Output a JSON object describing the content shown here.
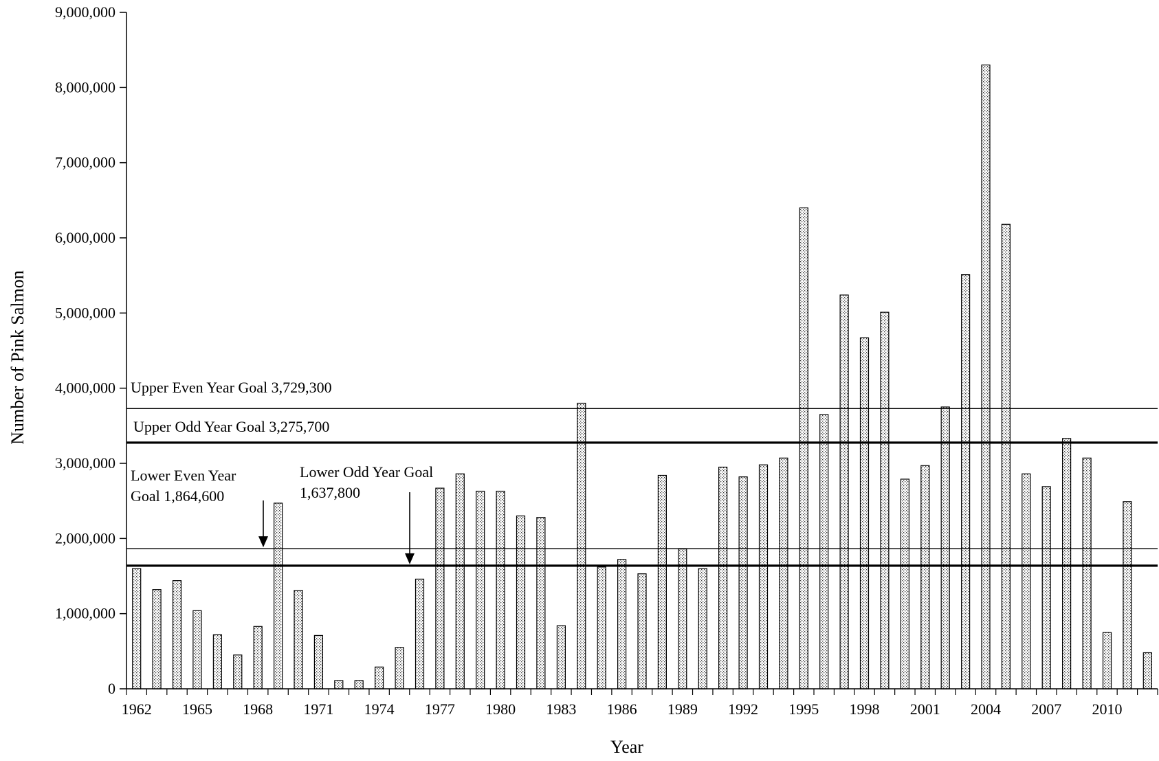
{
  "chart_data": {
    "type": "bar",
    "title": "",
    "xlabel": "Year",
    "ylabel": "Number of Pink Salmon",
    "ylim": [
      0,
      9000000
    ],
    "yticks": [
      0,
      1000000,
      2000000,
      3000000,
      4000000,
      5000000,
      6000000,
      7000000,
      8000000,
      9000000
    ],
    "ytick_labels": [
      "0",
      "1,000,000",
      "2,000,000",
      "3,000,000",
      "4,000,000",
      "5,000,000",
      "6,000,000",
      "7,000,000",
      "8,000,000",
      "9,000,000"
    ],
    "xtick_labels": [
      "1962",
      "1965",
      "1968",
      "1971",
      "1974",
      "1977",
      "1980",
      "1983",
      "1986",
      "1989",
      "1992",
      "1995",
      "1998",
      "2001",
      "2004",
      "2007",
      "2010"
    ],
    "grid": false,
    "bar_fill": "stippled",
    "categories": [
      1962,
      1963,
      1964,
      1965,
      1966,
      1967,
      1968,
      1969,
      1970,
      1971,
      1972,
      1973,
      1974,
      1975,
      1976,
      1977,
      1978,
      1979,
      1980,
      1981,
      1982,
      1983,
      1984,
      1985,
      1986,
      1987,
      1988,
      1989,
      1990,
      1991,
      1992,
      1993,
      1994,
      1995,
      1996,
      1997,
      1998,
      1999,
      2000,
      2001,
      2002,
      2003,
      2004,
      2005,
      2006,
      2007,
      2008,
      2009,
      2010,
      2011,
      2012
    ],
    "values": [
      1600000,
      1320000,
      1440000,
      1040000,
      720000,
      450000,
      830000,
      2470000,
      1310000,
      710000,
      110000,
      110000,
      290000,
      550000,
      1460000,
      2670000,
      2860000,
      2630000,
      2630000,
      2300000,
      2280000,
      840000,
      3800000,
      1620000,
      1720000,
      1530000,
      2840000,
      1860000,
      1600000,
      2950000,
      2820000,
      2980000,
      3070000,
      6400000,
      3650000,
      5240000,
      4670000,
      5010000,
      2790000,
      2970000,
      3750000,
      5510000,
      8300000,
      6180000,
      2860000,
      2690000,
      3330000,
      3070000,
      750000,
      2490000,
      480000
    ],
    "goal_lines": [
      {
        "name": "Upper Even Year Goal",
        "value": 3729300,
        "label": "Upper Even Year Goal 3,729,300",
        "weight": "thin"
      },
      {
        "name": "Upper Odd Year Goal",
        "value": 3275700,
        "label": "Upper Odd Year Goal 3,275,700",
        "weight": "thick"
      },
      {
        "name": "Lower Even Year Goal",
        "value": 1864600,
        "label_lines": [
          "Lower Even Year",
          "Goal 1,864,600"
        ],
        "weight": "thin"
      },
      {
        "name": "Lower Odd Year Goal",
        "value": 1637800,
        "label_lines": [
          "Lower Odd Year Goal",
          "1,637,800"
        ],
        "weight": "thick"
      }
    ]
  }
}
